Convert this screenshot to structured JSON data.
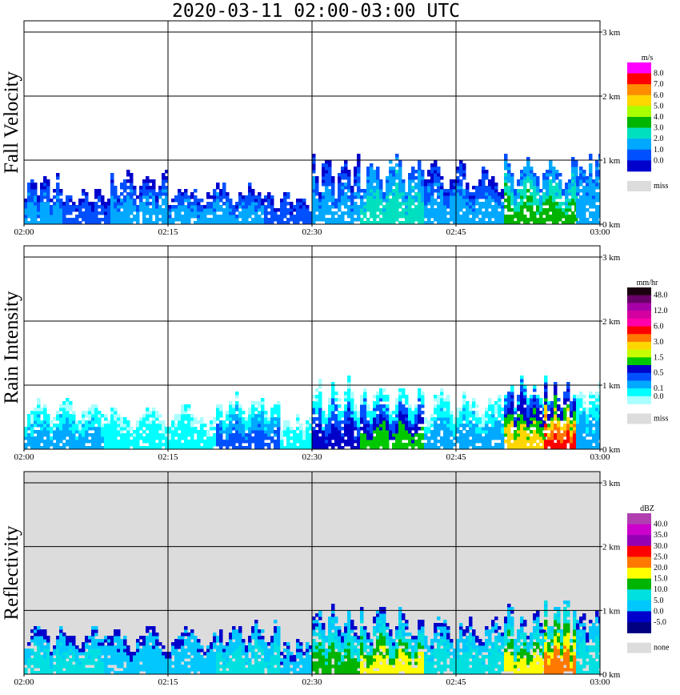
{
  "title": "2020-03-11   02:00-03:00 UTC",
  "time_ticks": [
    "02:00",
    "02:15",
    "02:30",
    "02:45",
    "03:00"
  ],
  "height_ticks": [
    "0 km",
    "1 km",
    "2 km",
    "3 km"
  ],
  "chart_data": [
    {
      "type": "heatmap",
      "ylabel": "Fall Velocity",
      "x": [
        "02:00",
        "03:00"
      ],
      "ylim_km": [
        0,
        3
      ],
      "grid": true,
      "colorbar": {
        "unit": "m/s",
        "labels": [
          "8.0",
          "7.0",
          "6.0",
          "5.0",
          "4.0",
          "3.0",
          "2.0",
          "1.0",
          "0.0"
        ],
        "colors": [
          "#ff00ff",
          "#ff0000",
          "#ff8c00",
          "#ffd700",
          "#aaff00",
          "#00b400",
          "#00e0c0",
          "#00a8ff",
          "#0050ff",
          "#0000cc"
        ],
        "missing_label": "miss",
        "missing_color": "#dcdcdc"
      },
      "echoes": [
        {
          "t0": 0,
          "t1": 240,
          "top_km": 0.85,
          "colors": [
            "#0000cc",
            "#0050ff",
            "#00a8ff"
          ]
        },
        {
          "t0": 240,
          "t1": 540,
          "top_km": 0.6,
          "colors": [
            "#0000cc",
            "#0050ff"
          ]
        },
        {
          "t0": 540,
          "t1": 900,
          "top_km": 0.95,
          "colors": [
            "#0000cc",
            "#0050ff",
            "#00a8ff"
          ]
        },
        {
          "t0": 900,
          "t1": 1500,
          "top_km": 0.7,
          "colors": [
            "#0000cc",
            "#0050ff",
            "#00a8ff"
          ]
        },
        {
          "t0": 1500,
          "t1": 1800,
          "top_km": 0.55,
          "colors": [
            "#0000cc",
            "#0050ff"
          ]
        },
        {
          "t0": 1800,
          "t1": 2100,
          "top_km": 1.2,
          "colors": [
            "#0000cc",
            "#0050ff",
            "#00a8ff"
          ]
        },
        {
          "t0": 2100,
          "t1": 2500,
          "top_km": 1.15,
          "colors": [
            "#0050ff",
            "#00a8ff",
            "#00e0c0"
          ]
        },
        {
          "t0": 2500,
          "t1": 3000,
          "top_km": 1.05,
          "colors": [
            "#0000cc",
            "#0050ff",
            "#00a8ff"
          ]
        },
        {
          "t0": 3000,
          "t1": 3450,
          "top_km": 1.2,
          "colors": [
            "#0050ff",
            "#00a8ff",
            "#00e0c0",
            "#00b400"
          ]
        },
        {
          "t0": 3450,
          "t1": 3600,
          "top_km": 1.25,
          "colors": [
            "#0050ff",
            "#00a8ff"
          ]
        }
      ]
    },
    {
      "type": "heatmap",
      "ylabel": "Rain Intensity",
      "x": [
        "02:00",
        "03:00"
      ],
      "ylim_km": [
        0,
        3
      ],
      "grid": true,
      "colorbar": {
        "unit": "mm/hr",
        "labels": [
          "48.0",
          "",
          "12.0",
          "",
          "6.0",
          "",
          "3.0",
          "",
          "1.5",
          "",
          "0.5",
          "",
          "0.1",
          "0.0"
        ],
        "colors": [
          "#1a0010",
          "#6a006a",
          "#a800a8",
          "#d400a0",
          "#ff00aa",
          "#ff0000",
          "#ff7800",
          "#ffd700",
          "#c8ff00",
          "#00c800",
          "#0000c8",
          "#0050ff",
          "#00a8ff",
          "#00ffff",
          "#aaffff"
        ],
        "missing_label": "miss",
        "missing_color": "#dcdcdc"
      },
      "echoes": [
        {
          "t0": 0,
          "t1": 500,
          "top_km": 0.85,
          "colors": [
            "#aaffff",
            "#00ffff",
            "#00a8ff"
          ]
        },
        {
          "t0": 500,
          "t1": 1200,
          "top_km": 0.75,
          "colors": [
            "#aaffff",
            "#00ffff"
          ]
        },
        {
          "t0": 1200,
          "t1": 1600,
          "top_km": 0.95,
          "colors": [
            "#aaffff",
            "#00ffff",
            "#00a8ff",
            "#0050ff"
          ]
        },
        {
          "t0": 1600,
          "t1": 1800,
          "top_km": 0.65,
          "colors": [
            "#aaffff",
            "#00ffff"
          ]
        },
        {
          "t0": 1800,
          "t1": 2100,
          "top_km": 1.2,
          "colors": [
            "#aaffff",
            "#00ffff",
            "#0050ff",
            "#0000c8"
          ]
        },
        {
          "t0": 2100,
          "t1": 2500,
          "top_km": 1.15,
          "colors": [
            "#aaffff",
            "#00ffff",
            "#0050ff",
            "#0000c8",
            "#00c800"
          ]
        },
        {
          "t0": 2500,
          "t1": 3000,
          "top_km": 1.0,
          "colors": [
            "#aaffff",
            "#00ffff",
            "#00a8ff"
          ]
        },
        {
          "t0": 3000,
          "t1": 3250,
          "top_km": 1.2,
          "colors": [
            "#00ffff",
            "#0050ff",
            "#0000c8",
            "#00c800",
            "#ffd700"
          ]
        },
        {
          "t0": 3250,
          "t1": 3450,
          "top_km": 1.25,
          "colors": [
            "#00ffff",
            "#0050ff",
            "#0000c8",
            "#00c800",
            "#ffd700",
            "#ff7800",
            "#ff0000"
          ]
        },
        {
          "t0": 3450,
          "t1": 3600,
          "top_km": 1.2,
          "colors": [
            "#aaffff",
            "#00ffff",
            "#00a8ff"
          ]
        }
      ]
    },
    {
      "type": "heatmap",
      "ylabel": "Reflectivity",
      "x": [
        "02:00",
        "03:00"
      ],
      "ylim_km": [
        0,
        3
      ],
      "grid": true,
      "background": "#dcdcdc",
      "colorbar": {
        "unit": "dBZ",
        "labels": [
          "40.0",
          "35.0",
          "30.0",
          "25.0",
          "20.0",
          "15.0",
          "10.0",
          "5.0",
          "0.0",
          "-5.0"
        ],
        "colors": [
          "#b040b0",
          "#cc00cc",
          "#9600b4",
          "#ff0000",
          "#ff7800",
          "#ffff00",
          "#00b400",
          "#00e0e0",
          "#00c8ff",
          "#0000cc",
          "#000080"
        ],
        "missing_label": "none",
        "missing_color": "#dcdcdc"
      },
      "echoes": [
        {
          "t0": 0,
          "t1": 500,
          "top_km": 0.85,
          "colors": [
            "#0000cc",
            "#00c8ff",
            "#00e0e0"
          ]
        },
        {
          "t0": 500,
          "t1": 1200,
          "top_km": 0.8,
          "colors": [
            "#0000cc",
            "#00c8ff"
          ]
        },
        {
          "t0": 1200,
          "t1": 1600,
          "top_km": 0.95,
          "colors": [
            "#0000cc",
            "#00c8ff",
            "#00e0e0"
          ]
        },
        {
          "t0": 1600,
          "t1": 1800,
          "top_km": 0.65,
          "colors": [
            "#0000cc",
            "#00c8ff"
          ]
        },
        {
          "t0": 1800,
          "t1": 2100,
          "top_km": 1.2,
          "colors": [
            "#0000cc",
            "#00c8ff",
            "#00e0e0",
            "#00b400"
          ]
        },
        {
          "t0": 2100,
          "t1": 2500,
          "top_km": 1.15,
          "colors": [
            "#0000cc",
            "#00c8ff",
            "#00e0e0",
            "#00b400",
            "#ffff00"
          ]
        },
        {
          "t0": 2500,
          "t1": 3000,
          "top_km": 1.0,
          "colors": [
            "#0000cc",
            "#00c8ff",
            "#00e0e0"
          ]
        },
        {
          "t0": 3000,
          "t1": 3250,
          "top_km": 1.2,
          "colors": [
            "#0000cc",
            "#00c8ff",
            "#00e0e0",
            "#00b400",
            "#ffff00"
          ]
        },
        {
          "t0": 3250,
          "t1": 3450,
          "top_km": 1.25,
          "colors": [
            "#00c8ff",
            "#00e0e0",
            "#00b400",
            "#ffff00",
            "#ff7800"
          ]
        },
        {
          "t0": 3450,
          "t1": 3600,
          "top_km": 1.2,
          "colors": [
            "#0000cc",
            "#00c8ff",
            "#00e0e0"
          ]
        }
      ]
    }
  ]
}
